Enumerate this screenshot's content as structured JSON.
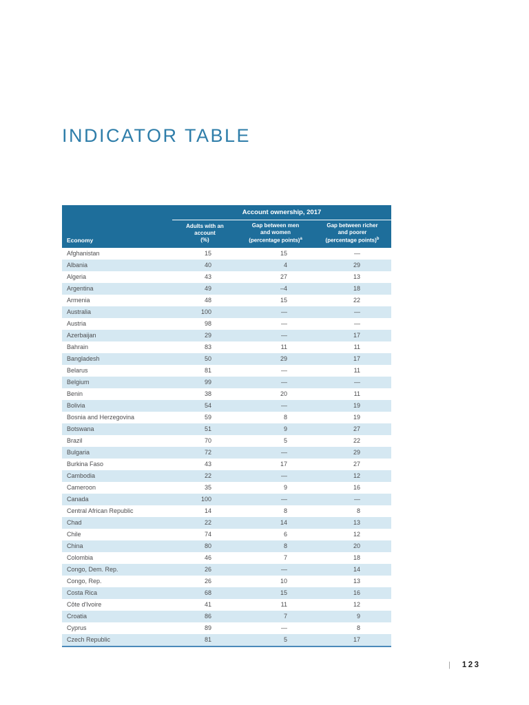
{
  "page": {
    "title": "INDICATOR TABLE",
    "footer": {
      "separator": "|",
      "page_number": "123"
    }
  },
  "colors": {
    "header_bg": "#1E6E9B",
    "stripe": "#D5E8F2",
    "title": "#2E7DA9",
    "row_text": "#4D4D4F",
    "bottom_border": "#4A89BA"
  },
  "table": {
    "group_header": "Account ownership, 2017",
    "columns": [
      {
        "label": "Economy"
      },
      {
        "lines": [
          "Adults with an",
          "account",
          "(%)"
        ],
        "footnote": ""
      },
      {
        "lines": [
          "Gap between men",
          "and women",
          "(percentage points)"
        ],
        "footnote": "a"
      },
      {
        "lines": [
          "Gap between richer",
          "and poorer",
          "(percentage points)"
        ],
        "footnote": "b"
      }
    ],
    "rows": [
      {
        "economy": "Afghanistan",
        "account": "15",
        "gap_men_women": "15",
        "gap_rich_poor": "—"
      },
      {
        "economy": "Albania",
        "account": "40",
        "gap_men_women": "4",
        "gap_rich_poor": "29"
      },
      {
        "economy": "Algeria",
        "account": "43",
        "gap_men_women": "27",
        "gap_rich_poor": "13"
      },
      {
        "economy": "Argentina",
        "account": "49",
        "gap_men_women": "–4",
        "gap_rich_poor": "18"
      },
      {
        "economy": "Armenia",
        "account": "48",
        "gap_men_women": "15",
        "gap_rich_poor": "22"
      },
      {
        "economy": "Australia",
        "account": "100",
        "gap_men_women": "—",
        "gap_rich_poor": "—"
      },
      {
        "economy": "Austria",
        "account": "98",
        "gap_men_women": "—",
        "gap_rich_poor": "—"
      },
      {
        "economy": "Azerbaijan",
        "account": "29",
        "gap_men_women": "—",
        "gap_rich_poor": "17"
      },
      {
        "economy": "Bahrain",
        "account": "83",
        "gap_men_women": "11",
        "gap_rich_poor": "11"
      },
      {
        "economy": "Bangladesh",
        "account": "50",
        "gap_men_women": "29",
        "gap_rich_poor": "17"
      },
      {
        "economy": "Belarus",
        "account": "81",
        "gap_men_women": "—",
        "gap_rich_poor": "11"
      },
      {
        "economy": "Belgium",
        "account": "99",
        "gap_men_women": "—",
        "gap_rich_poor": "—"
      },
      {
        "economy": "Benin",
        "account": "38",
        "gap_men_women": "20",
        "gap_rich_poor": "11"
      },
      {
        "economy": "Bolivia",
        "account": "54",
        "gap_men_women": "—",
        "gap_rich_poor": "19"
      },
      {
        "economy": "Bosnia and Herzegovina",
        "account": "59",
        "gap_men_women": "8",
        "gap_rich_poor": "19"
      },
      {
        "economy": "Botswana",
        "account": "51",
        "gap_men_women": "9",
        "gap_rich_poor": "27"
      },
      {
        "economy": "Brazil",
        "account": "70",
        "gap_men_women": "5",
        "gap_rich_poor": "22"
      },
      {
        "economy": "Bulgaria",
        "account": "72",
        "gap_men_women": "—",
        "gap_rich_poor": "29"
      },
      {
        "economy": "Burkina Faso",
        "account": "43",
        "gap_men_women": "17",
        "gap_rich_poor": "27"
      },
      {
        "economy": "Cambodia",
        "account": "22",
        "gap_men_women": "—",
        "gap_rich_poor": "12"
      },
      {
        "economy": "Cameroon",
        "account": "35",
        "gap_men_women": "9",
        "gap_rich_poor": "16"
      },
      {
        "economy": "Canada",
        "account": "100",
        "gap_men_women": "—",
        "gap_rich_poor": "—"
      },
      {
        "economy": "Central African Republic",
        "account": "14",
        "gap_men_women": "8",
        "gap_rich_poor": "8"
      },
      {
        "economy": "Chad",
        "account": "22",
        "gap_men_women": "14",
        "gap_rich_poor": "13"
      },
      {
        "economy": "Chile",
        "account": "74",
        "gap_men_women": "6",
        "gap_rich_poor": "12"
      },
      {
        "economy": "China",
        "account": "80",
        "gap_men_women": "8",
        "gap_rich_poor": "20"
      },
      {
        "economy": "Colombia",
        "account": "46",
        "gap_men_women": "7",
        "gap_rich_poor": "18"
      },
      {
        "economy": "Congo, Dem. Rep.",
        "account": "26",
        "gap_men_women": "—",
        "gap_rich_poor": "14"
      },
      {
        "economy": "Congo, Rep.",
        "account": "26",
        "gap_men_women": "10",
        "gap_rich_poor": "13"
      },
      {
        "economy": "Costa Rica",
        "account": "68",
        "gap_men_women": "15",
        "gap_rich_poor": "16"
      },
      {
        "economy": "Côte d'Ivoire",
        "account": "41",
        "gap_men_women": "11",
        "gap_rich_poor": "12"
      },
      {
        "economy": "Croatia",
        "account": "86",
        "gap_men_women": "7",
        "gap_rich_poor": "9"
      },
      {
        "economy": "Cyprus",
        "account": "89",
        "gap_men_women": "—",
        "gap_rich_poor": "8"
      },
      {
        "economy": "Czech Republic",
        "account": "81",
        "gap_men_women": "5",
        "gap_rich_poor": "17"
      }
    ]
  }
}
